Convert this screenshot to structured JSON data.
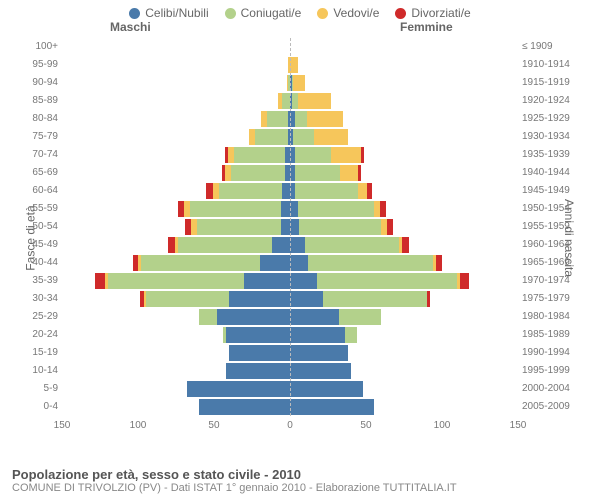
{
  "legend": {
    "items": [
      {
        "label": "Celibi/Nubili",
        "color": "#4a7aaa"
      },
      {
        "label": "Coniugati/e",
        "color": "#b3d18b"
      },
      {
        "label": "Vedovi/e",
        "color": "#f6c65b"
      },
      {
        "label": "Divorziati/e",
        "color": "#cf2a2a"
      }
    ]
  },
  "headers": {
    "male": "Maschi",
    "female": "Femmine"
  },
  "axis_labels": {
    "left": "Fasce di età",
    "right": "Anni di nascita"
  },
  "footer": {
    "title": "Popolazione per età, sesso e stato civile - 2010",
    "subtitle": "COMUNE DI TRIVOLZIO (PV) - Dati ISTAT 1° gennaio 2010 - Elaborazione TUTTITALIA.IT"
  },
  "chart": {
    "type": "population-pyramid-stacked",
    "x_max": 150,
    "x_ticks_left": [
      150,
      100,
      50,
      0
    ],
    "x_ticks_right": [
      0,
      50,
      100,
      150
    ],
    "segment_colors": [
      "#4a7aaa",
      "#b3d18b",
      "#f6c65b",
      "#cf2a2a"
    ],
    "background_color": "#ffffff",
    "centerline_color": "#bbbbbb",
    "tick_color": "#777777",
    "rows": [
      {
        "age": "0-4",
        "birth": "2005-2009",
        "male": [
          60,
          0,
          0,
          0
        ],
        "female": [
          55,
          0,
          0,
          0
        ]
      },
      {
        "age": "5-9",
        "birth": "2000-2004",
        "male": [
          68,
          0,
          0,
          0
        ],
        "female": [
          48,
          0,
          0,
          0
        ]
      },
      {
        "age": "10-14",
        "birth": "1995-1999",
        "male": [
          42,
          0,
          0,
          0
        ],
        "female": [
          40,
          0,
          0,
          0
        ]
      },
      {
        "age": "15-19",
        "birth": "1990-1994",
        "male": [
          40,
          0,
          0,
          0
        ],
        "female": [
          38,
          0,
          0,
          0
        ]
      },
      {
        "age": "20-24",
        "birth": "1985-1989",
        "male": [
          42,
          2,
          0,
          0
        ],
        "female": [
          36,
          8,
          0,
          0
        ]
      },
      {
        "age": "25-29",
        "birth": "1980-1984",
        "male": [
          48,
          12,
          0,
          0
        ],
        "female": [
          32,
          28,
          0,
          0
        ]
      },
      {
        "age": "30-34",
        "birth": "1975-1979",
        "male": [
          40,
          55,
          1,
          3
        ],
        "female": [
          22,
          68,
          0,
          2
        ]
      },
      {
        "age": "35-39",
        "birth": "1970-1974",
        "male": [
          30,
          90,
          2,
          6
        ],
        "female": [
          18,
          92,
          2,
          6
        ]
      },
      {
        "age": "40-44",
        "birth": "1965-1969",
        "male": [
          20,
          78,
          2,
          3
        ],
        "female": [
          12,
          82,
          2,
          4
        ]
      },
      {
        "age": "45-49",
        "birth": "1960-1964",
        "male": [
          12,
          62,
          2,
          4
        ],
        "female": [
          10,
          62,
          2,
          4
        ]
      },
      {
        "age": "50-54",
        "birth": "1955-1959",
        "male": [
          6,
          55,
          4,
          4
        ],
        "female": [
          6,
          54,
          4,
          4
        ]
      },
      {
        "age": "55-59",
        "birth": "1950-1954",
        "male": [
          6,
          60,
          4,
          4
        ],
        "female": [
          5,
          50,
          4,
          4
        ]
      },
      {
        "age": "60-64",
        "birth": "1945-1949",
        "male": [
          5,
          42,
          4,
          4
        ],
        "female": [
          3,
          42,
          6,
          3
        ]
      },
      {
        "age": "65-69",
        "birth": "1940-1944",
        "male": [
          3,
          36,
          4,
          2
        ],
        "female": [
          3,
          30,
          12,
          2
        ]
      },
      {
        "age": "70-74",
        "birth": "1935-1939",
        "male": [
          3,
          34,
          4,
          2
        ],
        "female": [
          3,
          24,
          20,
          2
        ]
      },
      {
        "age": "75-79",
        "birth": "1930-1934",
        "male": [
          1,
          22,
          4,
          0
        ],
        "female": [
          2,
          14,
          22,
          0
        ]
      },
      {
        "age": "80-84",
        "birth": "1925-1929",
        "male": [
          1,
          14,
          4,
          0
        ],
        "female": [
          3,
          8,
          24,
          0
        ]
      },
      {
        "age": "85-89",
        "birth": "1920-1924",
        "male": [
          0,
          5,
          3,
          0
        ],
        "female": [
          1,
          4,
          22,
          0
        ]
      },
      {
        "age": "90-94",
        "birth": "1915-1919",
        "male": [
          0,
          1,
          1,
          0
        ],
        "female": [
          1,
          1,
          8,
          0
        ]
      },
      {
        "age": "95-99",
        "birth": "1910-1914",
        "male": [
          0,
          0,
          1,
          0
        ],
        "female": [
          0,
          0,
          5,
          0
        ]
      },
      {
        "age": "100+",
        "birth": "≤ 1909",
        "male": [
          0,
          0,
          0,
          0
        ],
        "female": [
          0,
          0,
          0,
          0
        ]
      }
    ]
  }
}
